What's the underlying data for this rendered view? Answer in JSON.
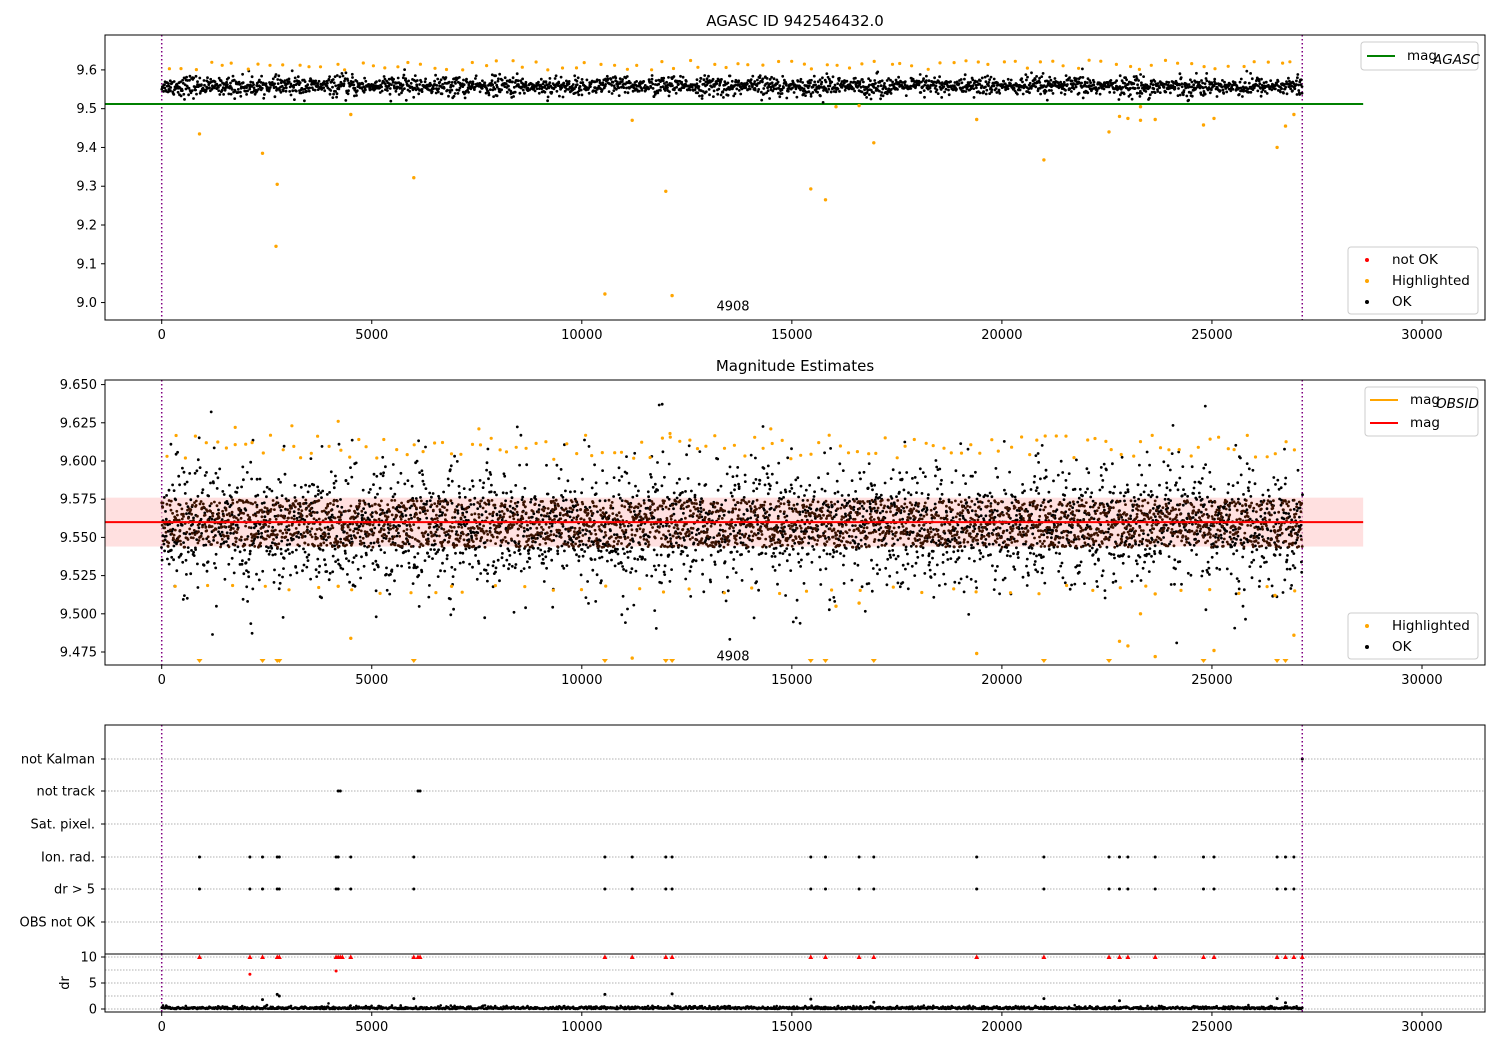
{
  "figure": {
    "background": "#ffffff"
  },
  "chart_data": [
    {
      "id": "agasc",
      "type": "scatter",
      "title": "AGASC ID 942546432.0",
      "xlim": [
        -1350,
        31500
      ],
      "ylim": [
        8.955,
        9.69
      ],
      "xticks": [
        0,
        5000,
        10000,
        15000,
        20000,
        25000,
        30000
      ],
      "yticks": [
        9.0,
        9.1,
        9.2,
        9.3,
        9.4,
        9.5,
        9.6
      ],
      "ytick_labels": [
        "9.0",
        "9.1",
        "9.2",
        "9.3",
        "9.4",
        "9.5",
        "9.6"
      ],
      "grid": false,
      "vlines": [
        {
          "x": 0,
          "color": "#800080",
          "style": "dotted"
        },
        {
          "x": 27150,
          "color": "#800080",
          "style": "dotted"
        }
      ],
      "annotations": [
        {
          "text": "4908",
          "x": 13600,
          "y": 8.99
        }
      ],
      "reference_lines": [
        {
          "name": "mag_AGASC",
          "y": 9.512,
          "x_range": [
            -1350,
            28600
          ],
          "color": "#008000"
        }
      ],
      "band": {
        "x_range": [
          0,
          27150
        ],
        "center": 9.558,
        "spread": 0.02
      },
      "outliers": [
        [
          900,
          9.435
        ],
        [
          2400,
          9.385
        ],
        [
          2750,
          9.305
        ],
        [
          2720,
          9.145
        ],
        [
          4500,
          9.485
        ],
        [
          6000,
          9.322
        ],
        [
          10550,
          9.022
        ],
        [
          11200,
          9.47
        ],
        [
          12000,
          9.287
        ],
        [
          12150,
          9.018
        ],
        [
          15450,
          9.293
        ],
        [
          15800,
          9.265
        ],
        [
          16050,
          9.505
        ],
        [
          16600,
          9.508
        ],
        [
          16950,
          9.412
        ],
        [
          19400,
          9.472
        ],
        [
          21000,
          9.368
        ],
        [
          22550,
          9.44
        ],
        [
          22800,
          9.48
        ],
        [
          23000,
          9.475
        ],
        [
          23300,
          9.505
        ],
        [
          23300,
          9.47
        ],
        [
          23650,
          9.472
        ],
        [
          24800,
          9.458
        ],
        [
          25050,
          9.475
        ],
        [
          26550,
          9.4
        ],
        [
          26750,
          9.455
        ],
        [
          26950,
          9.485
        ]
      ],
      "series": [
        {
          "name": "not OK",
          "color": "#ff0000",
          "marker": "dot"
        },
        {
          "name": "Highlighted",
          "color": "#ffa500",
          "marker": "dot"
        },
        {
          "name": "OK",
          "color": "#000000",
          "marker": "dot"
        }
      ],
      "legend_lines": [
        {
          "label": "mag",
          "sub": "AGASC",
          "color": "#008000"
        }
      ],
      "legend_points": [
        {
          "label": "not OK",
          "color": "#ff0000"
        },
        {
          "label": "Highlighted",
          "color": "#ffa500"
        },
        {
          "label": "OK",
          "color": "#000000"
        }
      ]
    },
    {
      "id": "estimates",
      "type": "scatter",
      "title": "Magnitude Estimates",
      "xlim": [
        -1350,
        31500
      ],
      "ylim": [
        9.4665,
        9.653
      ],
      "xticks": [
        0,
        5000,
        10000,
        15000,
        20000,
        25000,
        30000
      ],
      "yticks": [
        9.475,
        9.5,
        9.525,
        9.55,
        9.575,
        9.6,
        9.625,
        9.65
      ],
      "ytick_labels": [
        "9.475",
        "9.500",
        "9.525",
        "9.550",
        "9.575",
        "9.600",
        "9.625",
        "9.650"
      ],
      "grid": false,
      "vlines": [
        {
          "x": 0,
          "color": "#800080",
          "style": "dotted"
        },
        {
          "x": 27150,
          "color": "#800080",
          "style": "dotted"
        }
      ],
      "annotations": [
        {
          "text": "4908",
          "x": 13600,
          "y": 9.472
        }
      ],
      "reference_lines": [
        {
          "name": "mag",
          "y": 9.56,
          "x_range": [
            -1350,
            28600
          ],
          "color": "#ff0000"
        }
      ],
      "shaded_band": {
        "y_range": [
          9.544,
          9.576
        ],
        "x_range": [
          -1350,
          28600
        ],
        "color": "#ffcccc"
      },
      "mag_obsid_segments": {
        "color": "#ffa500"
      },
      "band": {
        "x_range": [
          0,
          27150
        ],
        "center": 9.557,
        "spread": 0.011
      },
      "lower_markers_x": [
        900,
        2400,
        2750,
        2800,
        6000,
        10550,
        12000,
        12150,
        15450,
        15800,
        16950,
        21000,
        22550,
        24800,
        26550,
        26750
      ],
      "outliers": [
        [
          4200,
          9.518
        ],
        [
          4500,
          9.484
        ],
        [
          6900,
          9.518
        ],
        [
          11200,
          9.471
        ],
        [
          16050,
          9.505
        ],
        [
          16600,
          9.507
        ],
        [
          19400,
          9.474
        ],
        [
          22800,
          9.482
        ],
        [
          23000,
          9.479
        ],
        [
          23300,
          9.5
        ],
        [
          23650,
          9.472
        ],
        [
          25050,
          9.476
        ],
        [
          26950,
          9.486
        ],
        [
          23650,
          9.513
        ],
        [
          26500,
          9.512
        ]
      ],
      "series": [
        {
          "name": "Highlighted",
          "color": "#ffa500",
          "marker": "dot"
        },
        {
          "name": "OK",
          "color": "#000000",
          "marker": "dot"
        }
      ],
      "legend_lines": [
        {
          "label": "mag",
          "sub": "OBSID",
          "color": "#ffa500"
        },
        {
          "label": "mag",
          "sub": "",
          "color": "#ff0000"
        }
      ],
      "legend_points": [
        {
          "label": "Highlighted",
          "color": "#ffa500"
        },
        {
          "label": "OK",
          "color": "#000000"
        }
      ]
    },
    {
      "id": "flags",
      "type": "scatter",
      "xlim": [
        -1350,
        31500
      ],
      "categories": [
        "not Kalman",
        "not track",
        "Sat. pixel.",
        "Ion. rad.",
        "dr > 5",
        "OBS not OK"
      ],
      "grid": true,
      "vlines": [
        {
          "x": 0,
          "color": "#800080",
          "style": "dotted"
        },
        {
          "x": 27150,
          "color": "#800080",
          "style": "dotted"
        }
      ],
      "flag_points": {
        "not Kalman": [
          27150
        ],
        "not track": [
          4200,
          4250,
          6100,
          6150
        ],
        "Sat. pixel.": [],
        "Ion. rad.": [
          900,
          2100,
          2400,
          2750,
          2800,
          4150,
          4200,
          4500,
          6000,
          10550,
          11200,
          12000,
          12150,
          15450,
          15800,
          16600,
          16950,
          19400,
          21000,
          22550,
          22800,
          23000,
          23650,
          24800,
          25050,
          26550,
          26750,
          26950
        ],
        "dr > 5": [
          900,
          2100,
          2400,
          2750,
          2800,
          4150,
          4200,
          4500,
          6000,
          10550,
          11200,
          12000,
          12150,
          15450,
          15800,
          16600,
          16950,
          19400,
          21000,
          22550,
          22800,
          23000,
          23650,
          24800,
          25050,
          26550,
          26750,
          26950
        ],
        "OBS not OK": []
      }
    },
    {
      "id": "dr",
      "type": "scatter",
      "ylabel": "dr",
      "xlim": [
        -1350,
        31500
      ],
      "xticks": [
        0,
        5000,
        10000,
        15000,
        20000,
        25000,
        30000
      ],
      "ylim": [
        -0.5,
        10.5
      ],
      "yticks": [
        0,
        5,
        10
      ],
      "grid": true,
      "vlines": [
        {
          "x": 0,
          "color": "#800080",
          "style": "dotted"
        },
        {
          "x": 27150,
          "color": "#800080",
          "style": "dotted"
        }
      ],
      "clipped_marker_x": [
        900,
        2100,
        2400,
        2750,
        2800,
        4150,
        4200,
        4250,
        4300,
        4500,
        6000,
        6100,
        6150,
        10550,
        11200,
        12000,
        12150,
        15450,
        15800,
        16600,
        16950,
        19400,
        21000,
        22550,
        22800,
        23000,
        23650,
        24800,
        25050,
        26550,
        26750,
        26950,
        27150
      ],
      "outliers": [
        [
          2100,
          6.7
        ],
        [
          4150,
          7.3
        ],
        [
          2750,
          2.8
        ],
        [
          2800,
          2.5
        ],
        [
          2400,
          1.8
        ],
        [
          6000,
          2.0
        ],
        [
          10550,
          2.8
        ],
        [
          12150,
          2.9
        ],
        [
          15450,
          1.9
        ],
        [
          21000,
          2.0
        ],
        [
          22800,
          1.6
        ],
        [
          26550,
          2.0
        ],
        [
          26750,
          1.2
        ],
        [
          16950,
          1.3
        ]
      ]
    }
  ]
}
